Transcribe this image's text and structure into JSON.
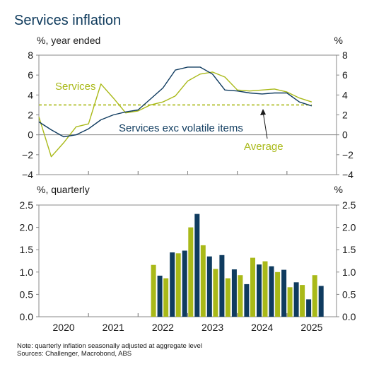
{
  "title": "Services inflation",
  "top_panel": {
    "left_unit": "%, year ended",
    "right_unit": "%"
  },
  "bottom_panel": {
    "left_unit": "%, quarterly",
    "right_unit": "%"
  },
  "annotations": {
    "services": "Services",
    "exc_volatile": "Services exc volatile items",
    "average": "Average"
  },
  "notes": [
    "Note: quarterly inflation seasonally adjusted at aggregate level",
    "Sources: Challenger, Macrobond, ABS"
  ],
  "colors": {
    "services": "#a9b918",
    "exc_volatile": "#0f3b5f",
    "axis": "#888888"
  },
  "chart_data": [
    {
      "type": "line",
      "ylim": [
        -4,
        8
      ],
      "yticks": [
        -4,
        -2,
        0,
        2,
        4,
        6,
        8
      ],
      "x_range": [
        2019.75,
        2025.75
      ],
      "x_tick_years": [
        2020,
        2021,
        2022,
        2023,
        2024,
        2025
      ],
      "average": 3.0,
      "series": [
        {
          "name": "Services",
          "x": [
            2019.75,
            2020.0,
            2020.25,
            2020.5,
            2020.75,
            2021.0,
            2021.25,
            2021.5,
            2021.75,
            2022.0,
            2022.25,
            2022.5,
            2022.75,
            2023.0,
            2023.25,
            2023.5,
            2023.75,
            2024.0,
            2024.25,
            2024.5,
            2024.75,
            2025.0,
            2025.25
          ],
          "values": [
            1.8,
            -2.2,
            -0.8,
            0.8,
            1.1,
            5.1,
            3.7,
            2.2,
            2.4,
            3.0,
            3.3,
            3.9,
            5.4,
            6.1,
            6.3,
            5.8,
            4.5,
            4.4,
            4.5,
            4.6,
            4.3,
            3.7,
            3.3
          ]
        },
        {
          "name": "Services exc volatile items",
          "x": [
            2019.75,
            2020.0,
            2020.25,
            2020.5,
            2020.75,
            2021.0,
            2021.25,
            2021.5,
            2021.75,
            2022.0,
            2022.25,
            2022.5,
            2022.75,
            2023.0,
            2023.25,
            2023.5,
            2023.75,
            2024.0,
            2024.25,
            2024.5,
            2024.75,
            2025.0,
            2025.25
          ],
          "values": [
            1.3,
            0.5,
            -0.2,
            0.0,
            0.6,
            1.5,
            2.0,
            2.3,
            2.5,
            3.6,
            4.7,
            6.5,
            6.8,
            6.8,
            6.1,
            4.5,
            4.4,
            4.2,
            4.1,
            4.2,
            4.2,
            3.3,
            2.9
          ]
        }
      ]
    },
    {
      "type": "bar",
      "ylim": [
        0,
        2.5
      ],
      "yticks": [
        0,
        0.5,
        1.0,
        1.5,
        2.0,
        2.5
      ],
      "categories": [
        "2022 Q1",
        "2022 Q2",
        "2022 Q3",
        "2022 Q4",
        "2023 Q1",
        "2023 Q2",
        "2023 Q3",
        "2023 Q4",
        "2024 Q1",
        "2024 Q2",
        "2024 Q3",
        "2024 Q4",
        "2025 Q1",
        "2025 Q2"
      ],
      "x_centers": [
        2022.125,
        2022.375,
        2022.625,
        2022.875,
        2023.125,
        2023.375,
        2023.625,
        2023.875,
        2024.125,
        2024.375,
        2024.625,
        2024.875,
        2025.125,
        2025.375
      ],
      "series": [
        {
          "name": "Services",
          "values": [
            1.16,
            0.86,
            1.42,
            2.0,
            1.6,
            1.07,
            0.86,
            0.93,
            1.32,
            1.24,
            1.0,
            0.66,
            0.71,
            0.93
          ]
        },
        {
          "name": "Services exc volatile items",
          "values": [
            0.92,
            1.44,
            1.48,
            2.3,
            1.35,
            1.38,
            1.06,
            0.73,
            1.17,
            1.13,
            1.05,
            0.77,
            0.39,
            0.69
          ]
        }
      ]
    }
  ]
}
